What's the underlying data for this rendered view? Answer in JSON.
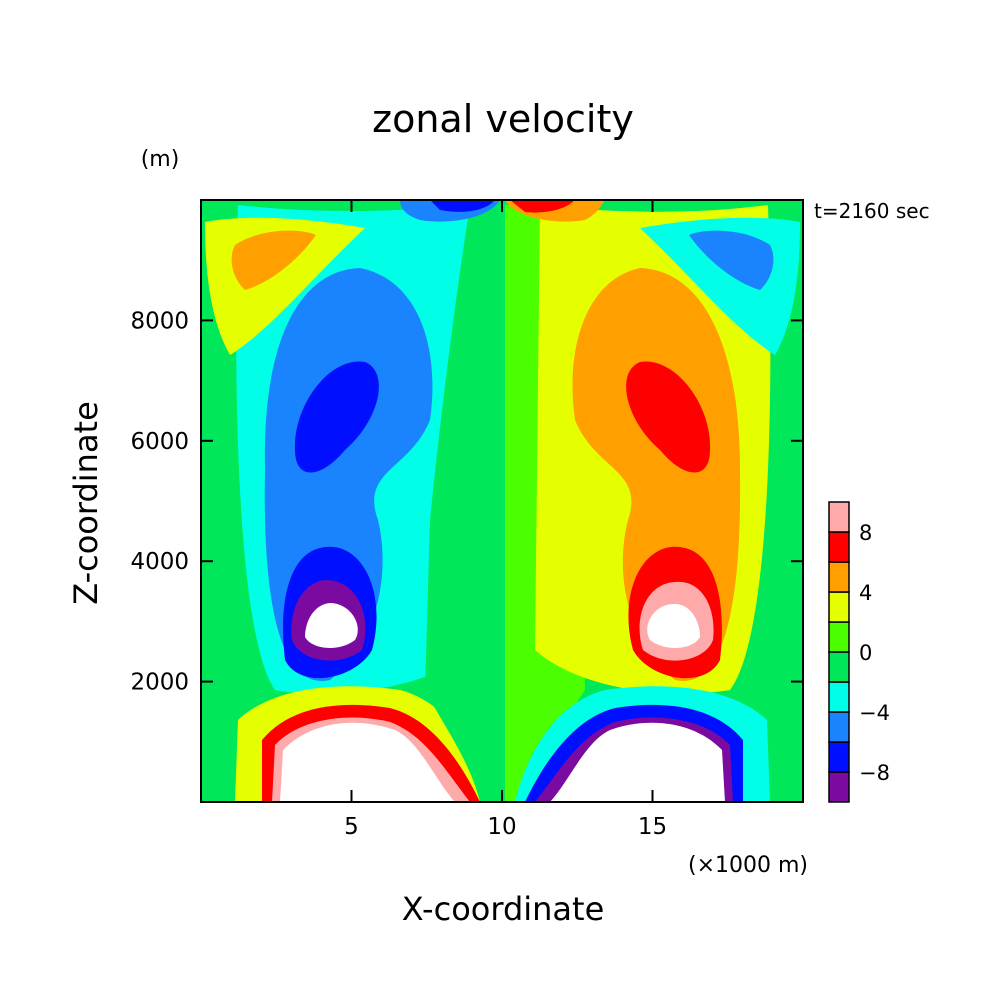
{
  "chart_data": {
    "type": "heatmap",
    "title": "zonal velocity",
    "time_label": "t=2160 sec",
    "xlabel": "X-coordinate",
    "ylabel": "Z-coordinate",
    "x_unit": "(×1000 m)",
    "y_unit": "(m)",
    "xlim": [
      0,
      20
    ],
    "ylim": [
      0,
      10000
    ],
    "x_ticks": [
      {
        "value": 5,
        "label": "5"
      },
      {
        "value": 10,
        "label": "10"
      },
      {
        "value": 15,
        "label": "15"
      }
    ],
    "y_ticks": [
      {
        "value": 2000,
        "label": "2000"
      },
      {
        "value": 4000,
        "label": "4000"
      },
      {
        "value": 6000,
        "label": "6000"
      },
      {
        "value": 8000,
        "label": "8000"
      }
    ],
    "colorbar": {
      "levels": [
        -10,
        -8,
        -6,
        -4,
        -2,
        0,
        2,
        4,
        6,
        8,
        10
      ],
      "colors": [
        "#7a0aa0",
        "#0010ff",
        "#1a84ff",
        "#00ffe6",
        "#00e85a",
        "#4cff00",
        "#e6ff00",
        "#ffa000",
        "#ff0000",
        "#ffaaaa"
      ],
      "tick_labels": [
        {
          "value": -8,
          "label": "−8"
        },
        {
          "value": -4,
          "label": "−4"
        },
        {
          "value": 0,
          "label": "0"
        },
        {
          "value": 4,
          "label": "4"
        },
        {
          "value": 8,
          "label": "8"
        }
      ]
    }
  }
}
